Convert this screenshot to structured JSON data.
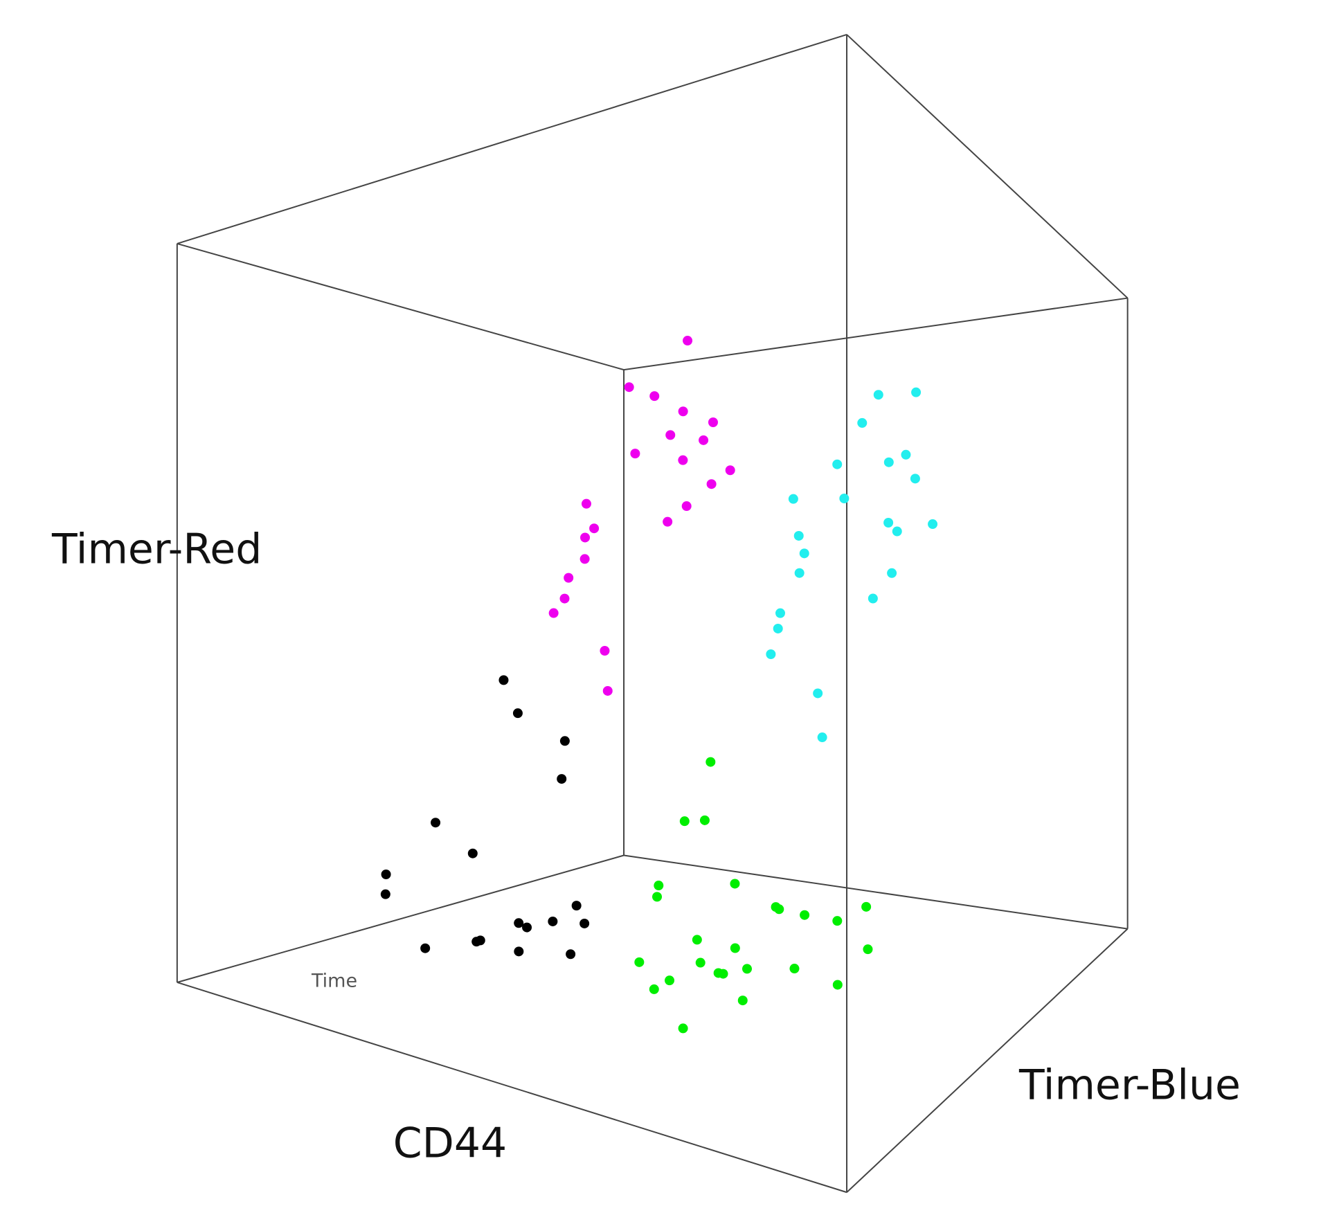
{
  "chart_data": {
    "type": "scatter3d",
    "xlabel": "CD44",
    "ylabel": "Timer-Blue",
    "zlabel": "Timer-Red",
    "annotation": "Time",
    "xlim": [
      0,
      1
    ],
    "ylim": [
      0,
      1
    ],
    "zlim": [
      0,
      1
    ],
    "series": [
      {
        "color": "#000000",
        "x": [
          0.2,
          0.25,
          0.15,
          0.3,
          0.22,
          0.18,
          0.28,
          0.12,
          0.24,
          0.33,
          0.2,
          0.16,
          0.27,
          0.21,
          0.1,
          0.3,
          0.19,
          0.25
        ],
        "y": [
          0.4,
          0.45,
          0.35,
          0.5,
          0.38,
          0.42,
          0.47,
          0.3,
          0.55,
          0.44,
          0.5,
          0.36,
          0.4,
          0.6,
          0.33,
          0.52,
          0.48,
          0.43
        ],
        "z": [
          0.03,
          0.05,
          0.02,
          0.08,
          0.04,
          0.15,
          0.06,
          0.1,
          0.25,
          0.03,
          0.35,
          0.2,
          0.07,
          0.3,
          0.12,
          0.05,
          0.4,
          0.02
        ]
      },
      {
        "color": "#00ee00",
        "x": [
          0.55,
          0.62,
          0.48,
          0.58,
          0.66,
          0.52,
          0.45,
          0.6,
          0.7,
          0.5,
          0.57,
          0.63,
          0.42,
          0.68,
          0.54,
          0.59,
          0.47,
          0.61,
          0.73,
          0.56,
          0.51,
          0.64,
          0.44,
          0.6,
          0.53
        ],
        "y": [
          0.5,
          0.45,
          0.55,
          0.6,
          0.52,
          0.4,
          0.48,
          0.65,
          0.58,
          0.35,
          0.5,
          0.42,
          0.6,
          0.7,
          0.55,
          0.38,
          0.44,
          0.56,
          0.62,
          0.47,
          0.53,
          0.68,
          0.5,
          0.3,
          0.46
        ],
        "z": [
          0.03,
          0.06,
          0.02,
          0.1,
          0.05,
          0.04,
          0.12,
          0.08,
          0.02,
          0.07,
          0.15,
          0.03,
          0.2,
          0.09,
          0.05,
          0.25,
          0.01,
          0.11,
          0.06,
          0.04,
          0.3,
          0.07,
          0.13,
          0.02,
          0.08
        ]
      },
      {
        "color": "#ee00ee",
        "x": [
          0.4,
          0.45,
          0.35,
          0.5,
          0.38,
          0.42,
          0.3,
          0.48,
          0.36,
          0.44,
          0.33,
          0.52,
          0.4,
          0.28,
          0.46,
          0.39,
          0.43,
          0.37,
          0.5,
          0.41,
          0.32,
          0.47
        ],
        "y": [
          0.5,
          0.55,
          0.45,
          0.6,
          0.4,
          0.52,
          0.48,
          0.58,
          0.35,
          0.62,
          0.5,
          0.45,
          0.42,
          0.55,
          0.5,
          0.65,
          0.38,
          0.53,
          0.47,
          0.57,
          0.44,
          0.6
        ],
        "z": [
          0.72,
          0.78,
          0.65,
          0.7,
          0.6,
          0.8,
          0.55,
          0.68,
          0.5,
          0.75,
          0.62,
          0.85,
          0.45,
          0.58,
          0.74,
          0.66,
          0.4,
          0.82,
          0.7,
          0.63,
          0.52,
          0.77
        ]
      },
      {
        "color": "#22eeee",
        "x": [
          0.7,
          0.75,
          0.65,
          0.8,
          0.68,
          0.72,
          0.6,
          0.78,
          0.66,
          0.74,
          0.63,
          0.82,
          0.7,
          0.58,
          0.76,
          0.69,
          0.73,
          0.67,
          0.8,
          0.71,
          0.62,
          0.77
        ],
        "y": [
          0.6,
          0.65,
          0.55,
          0.7,
          0.5,
          0.62,
          0.58,
          0.68,
          0.45,
          0.72,
          0.6,
          0.55,
          0.52,
          0.65,
          0.6,
          0.75,
          0.48,
          0.63,
          0.57,
          0.67,
          0.54,
          0.7
        ],
        "z": [
          0.65,
          0.7,
          0.6,
          0.62,
          0.55,
          0.75,
          0.5,
          0.68,
          0.45,
          0.72,
          0.58,
          0.6,
          0.4,
          0.66,
          0.78,
          0.63,
          0.35,
          0.7,
          0.55,
          0.52,
          0.48,
          0.8
        ]
      }
    ]
  }
}
